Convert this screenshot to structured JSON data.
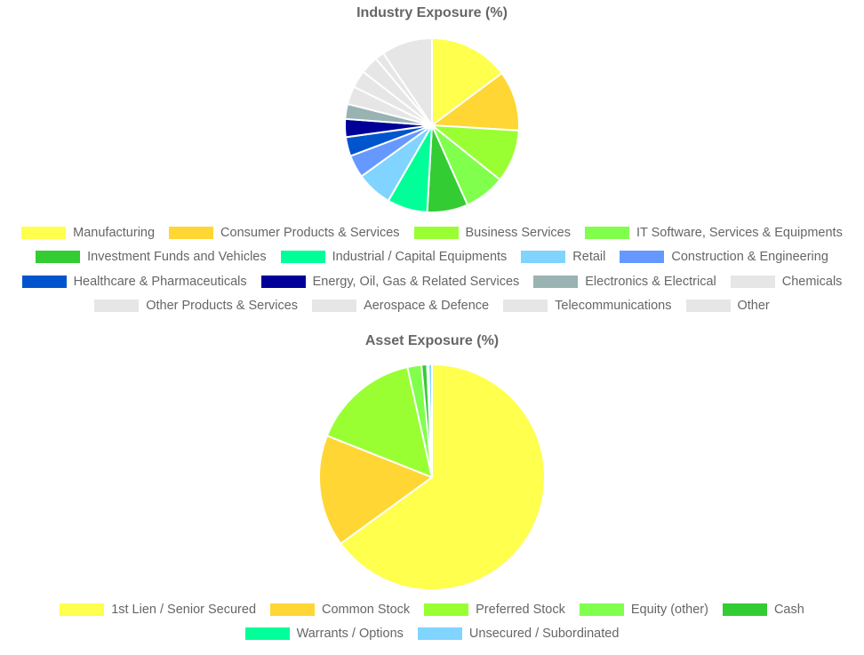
{
  "chart_data": [
    {
      "type": "pie",
      "title": "Industry Exposure (%)",
      "labels": [
        "Manufacturing",
        "Consumer Products & Services",
        "Business Services",
        "IT Software, Services & Equipments",
        "Investment Funds and Vehicles",
        "Industrial / Capital Equipments",
        "Retail",
        "Construction & Engineering",
        "Healthcare & Pharmaceuticals",
        "Energy, Oil, Gas & Related Services",
        "Electronics & Electrical",
        "Chemicals",
        "Other Products & Services",
        "Aerospace & Defence",
        "Telecommunications",
        "Other"
      ],
      "values": [
        13.3,
        10.0,
        8.8,
        6.8,
        6.8,
        6.7,
        6.0,
        3.8,
        3.2,
        3.0,
        2.5,
        3.0,
        2.9,
        3.0,
        1.5,
        8.5
      ],
      "colors": [
        "#ffff4d",
        "#ffd633",
        "#99ff33",
        "#80ff4d",
        "#33cc33",
        "#00ff99",
        "#80d4ff",
        "#6699ff",
        "#0055cc",
        "#000099",
        "#99b3b3",
        "#e6e6e6",
        "#e6e6e6",
        "#e6e6e6",
        "#e6e6e6",
        "#e6e6e6"
      ],
      "legend_rows": [
        [
          0,
          1,
          2,
          3
        ],
        [
          4,
          5,
          6,
          7
        ],
        [
          8,
          9,
          10,
          11
        ],
        [
          12,
          13,
          14,
          15
        ]
      ],
      "legend_position": "bottom"
    },
    {
      "type": "pie",
      "title": "Asset Exposure (%)",
      "labels": [
        "1st Lien / Senior Secured",
        "Common Stock",
        "Preferred Stock",
        "Equity (other)",
        "Cash",
        "Warrants / Options",
        "Unsecured / Subordinated"
      ],
      "values": [
        65.0,
        16.0,
        15.5,
        2.0,
        0.8,
        0.2,
        0.5
      ],
      "colors": [
        "#ffff4d",
        "#ffd633",
        "#99ff33",
        "#80ff4d",
        "#33cc33",
        "#00ff99",
        "#80d4ff"
      ],
      "legend_rows": [
        [
          0,
          1,
          2,
          3,
          4
        ],
        [
          5,
          6
        ]
      ],
      "legend_position": "bottom"
    }
  ]
}
